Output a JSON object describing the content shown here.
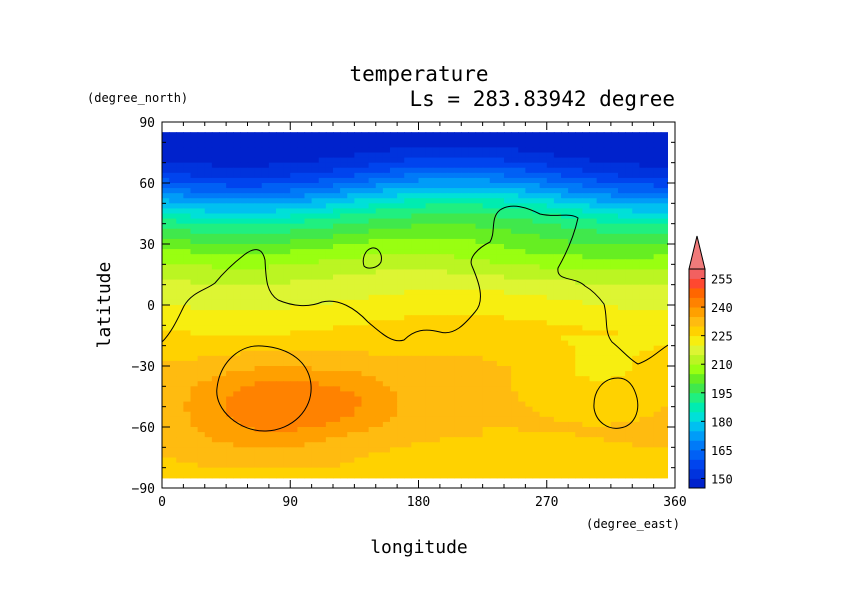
{
  "chart_data": {
    "type": "heatmap",
    "title": "temperature",
    "subtitle": "Ls = 283.83942 degree",
    "xlabel": "longitude",
    "ylabel": "latitude",
    "x_units": "(degree_east)",
    "y_units": "(degree_north)",
    "xlim": [
      0,
      360
    ],
    "ylim": [
      -90,
      90
    ],
    "xticks": [
      0,
      90,
      180,
      270,
      360
    ],
    "yticks": [
      90,
      60,
      30,
      0,
      -30,
      -60,
      -90
    ],
    "xtick_labels": [
      "0",
      "90",
      "180",
      "270",
      "360"
    ],
    "ytick_labels": [
      "90",
      "60",
      "30",
      "0",
      "−30",
      "−60",
      "−90"
    ],
    "grid": false,
    "colorbar": {
      "levels": [
        145,
        150,
        155,
        160,
        165,
        170,
        175,
        180,
        185,
        190,
        195,
        200,
        205,
        210,
        215,
        220,
        225,
        230,
        235,
        240,
        245,
        250,
        255,
        260
      ],
      "labeled_values": [
        150,
        165,
        180,
        195,
        210,
        225,
        240,
        255
      ],
      "tick_labels": [
        "150",
        "165",
        "180",
        "195",
        "210",
        "225",
        "240",
        "255"
      ],
      "colors": [
        "#0022cc",
        "#0033dd",
        "#0044ee",
        "#0060f5",
        "#007af8",
        "#009cf8",
        "#00c0f0",
        "#00e0d8",
        "#00ecb0",
        "#20ef80",
        "#40e84c",
        "#66ee22",
        "#99ff11",
        "#bbf522",
        "#ddf533",
        "#f7ee10",
        "#ffd200",
        "#ffbb10",
        "#ffa000",
        "#ff8200",
        "#ff6600",
        "#ff4830",
        "#f26060"
      ],
      "overflow_color": "#f07a7a"
    },
    "zonal_profile": {
      "lat": [
        85,
        80,
        75,
        70,
        65,
        60,
        55,
        50,
        45,
        40,
        35,
        30,
        25,
        20,
        15,
        10,
        5,
        0,
        -5,
        -10,
        -15,
        -20,
        -25,
        -30,
        -35,
        -40,
        -45,
        -50,
        -55,
        -60,
        -65,
        -70,
        -75,
        -80,
        -85
      ],
      "temperature": [
        148,
        148,
        149,
        152,
        158,
        165,
        173,
        181,
        189,
        195,
        200,
        205,
        209,
        212,
        215,
        217,
        219,
        221,
        223,
        225,
        226,
        228,
        229,
        230,
        231,
        231,
        231,
        231,
        231,
        231,
        230,
        230,
        229,
        229,
        229
      ]
    }
  }
}
